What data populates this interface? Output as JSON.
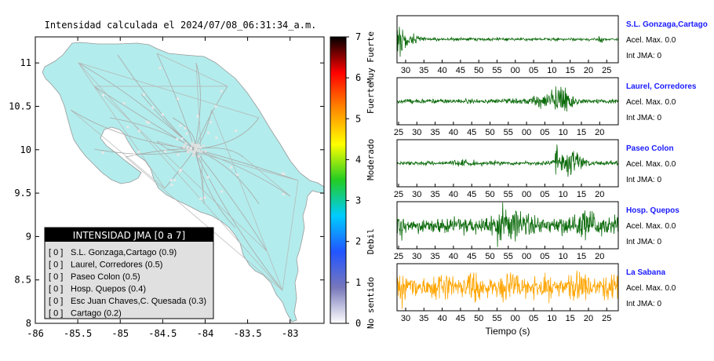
{
  "map": {
    "title": "Intensidad calculada el 2024/07/08_06:31:34_a.m.",
    "x_ticks": [
      "-86",
      "-85.5",
      "-85",
      "-84.5",
      "-84",
      "-83.5",
      "-83"
    ],
    "y_ticks": [
      "11",
      "10.5",
      "10",
      "9.5",
      "9",
      "8.5",
      "8"
    ],
    "xlim": [
      -86,
      -82.6
    ],
    "ylim": [
      8,
      11.3
    ],
    "land_color": "#b3ecec",
    "legend": {
      "title": "INTENSIDAD JMA [0 a 7]",
      "entries": [
        {
          "level": "[ 0 ]",
          "label": "S.L. Gonzaga,Cartago (0.9)"
        },
        {
          "level": "[ 0 ]",
          "label": "Laurel, Corredores (0.5)"
        },
        {
          "level": "[ 0 ]",
          "label": "Paseo Colon (0.5)"
        },
        {
          "level": "[ 0 ]",
          "label": "Hosp. Quepos (0.4)"
        },
        {
          "level": "[ 0 ]",
          "label": "Esc Juan Chaves,C. Quesada (0.3)"
        },
        {
          "level": "[ 0 ]",
          "label": "Cartago (0.2)"
        }
      ]
    }
  },
  "colorbar": {
    "ticks": [
      "0",
      "1",
      "2",
      "3",
      "4",
      "5",
      "6",
      "7"
    ],
    "labels": [
      "No sentido",
      "Debil",
      "Moderado",
      "Fuerte",
      "Muy Fuerte"
    ],
    "range": [
      0,
      7
    ],
    "colors": [
      "#ffffff",
      "#7777bb",
      "#2255ff",
      "#00ccff",
      "#22cc22",
      "#ffff00",
      "#ff8800",
      "#ff0000",
      "#000000"
    ]
  },
  "waveforms": {
    "xlabel": "Tiempo (s)",
    "stations": [
      {
        "name": "S.L. Gonzaga,Cartago",
        "acel": "Acel. Max. 0.0",
        "jma": "Int JMA: 0",
        "color": "#0a6a0a",
        "ticks": [
          "30",
          "35",
          "40",
          "45",
          "50",
          "55",
          "00",
          "05",
          "10",
          "15",
          "20",
          "25"
        ],
        "first_tick": 30
      },
      {
        "name": "Laurel, Corredores",
        "acel": "Acel. Max. 0.0",
        "jma": "Int JMA: 0",
        "color": "#0a6a0a",
        "ticks": [
          "25",
          "30",
          "35",
          "40",
          "45",
          "50",
          "55",
          "00",
          "05",
          "10",
          "15",
          "20"
        ],
        "first_tick": 25
      },
      {
        "name": "Paseo Colon",
        "acel": "Acel. Max. 0.0",
        "jma": "Int JMA: 0",
        "color": "#0a6a0a",
        "ticks": [
          "25",
          "30",
          "35",
          "40",
          "45",
          "50",
          "55",
          "00",
          "05",
          "10",
          "15",
          "20"
        ],
        "first_tick": 25
      },
      {
        "name": "Hosp. Quepos",
        "acel": "Acel. Max. 0.0",
        "jma": "Int JMA: 0",
        "color": "#0a6a0a",
        "ticks": [
          "25",
          "30",
          "35",
          "40",
          "45",
          "50",
          "55",
          "00",
          "05",
          "10",
          "15",
          "20"
        ],
        "first_tick": 25
      },
      {
        "name": "La Sabana",
        "acel": "Acel. Max. 0.0",
        "jma": "Int JMA: 0",
        "color": "#ffa500",
        "ticks": [
          "30",
          "35",
          "40",
          "45",
          "50",
          "55",
          "00",
          "05",
          "10",
          "15",
          "20",
          "25"
        ],
        "first_tick": 30
      }
    ]
  }
}
